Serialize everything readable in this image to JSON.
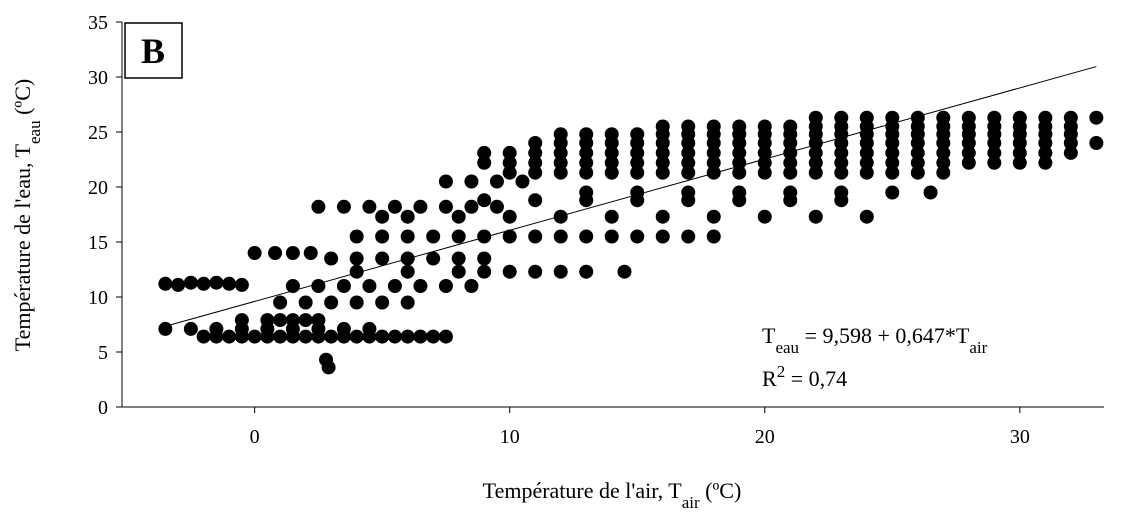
{
  "chart_data": {
    "type": "scatter",
    "title": "B",
    "y_label": {
      "text": "Température de l'eau, T",
      "sub": "eau",
      "unit": " (ºC)"
    },
    "x_label": {
      "text": "Température de l'air, T",
      "sub": "air",
      "unit": " (ºC)"
    },
    "equation": [
      "T",
      "eau",
      " = 9,598 + 0,647*T",
      "air"
    ],
    "r_squared": [
      "R",
      "2",
      " = 0,74"
    ],
    "trendline": {
      "intercept": 9.598,
      "slope": 0.647,
      "x": [
        -3.6,
        33
      ]
    },
    "xlim": [
      -5.2,
      33.3
    ],
    "xticks": [
      0,
      10,
      20,
      30
    ],
    "ylim": [
      0,
      35
    ],
    "yticks": [
      0,
      5,
      10,
      15,
      20,
      25,
      30,
      35
    ],
    "series": [
      {
        "color": "#000000",
        "x": [
          -3.5,
          -3,
          -2.5,
          -2,
          -1.5,
          -1,
          -0.5,
          -2,
          -1.5,
          -1,
          -0.5,
          0,
          0.5,
          1,
          1.5,
          2,
          2.5,
          3,
          3.5,
          4,
          4.5,
          5,
          5.5,
          6,
          6.5,
          7,
          7.5,
          -3.5,
          -2.5,
          -1.5,
          -0.5,
          0.5,
          1.5,
          2.5,
          3.5,
          4.5,
          -0.5,
          0.5,
          1,
          1.5,
          2,
          2.5,
          2.9,
          2.8,
          0,
          0.8,
          1.5,
          2.2,
          1,
          2,
          3,
          4,
          5,
          6,
          1.5,
          2.5,
          3.5,
          4.5,
          5.5,
          6.5,
          7.5,
          8.5,
          4,
          6,
          8,
          9,
          10,
          11,
          12,
          13,
          14.5,
          3,
          4,
          5,
          6,
          7,
          8,
          9,
          2.5,
          3.5,
          4.5,
          5.5,
          6.5,
          7.5,
          8.5,
          9.5,
          4,
          5,
          6,
          7,
          8,
          9,
          10,
          11,
          12,
          13,
          14,
          15,
          16,
          17,
          18,
          5,
          6,
          8,
          10,
          12,
          14,
          16,
          18,
          20,
          22,
          24,
          9,
          11,
          13,
          15,
          17,
          19,
          21,
          23,
          13,
          15,
          17,
          19,
          21,
          23,
          25,
          26.5,
          7.5,
          8.5,
          9.5,
          10.5,
          10,
          11,
          12,
          13,
          14,
          15,
          16,
          17,
          18,
          19,
          20,
          21,
          22,
          23,
          24,
          25,
          26,
          27,
          9,
          10,
          11,
          12,
          13,
          14,
          15,
          16,
          17,
          18,
          19,
          20,
          21,
          22,
          23,
          24,
          25,
          26,
          27,
          28,
          29,
          30,
          31,
          9,
          10,
          11,
          12,
          13,
          14,
          15,
          16,
          17,
          18,
          19,
          20,
          21,
          22,
          23,
          24,
          25,
          26,
          27,
          28,
          29,
          30,
          31,
          32,
          11,
          12,
          13,
          14,
          15,
          16,
          17,
          18,
          19,
          20,
          21,
          22,
          23,
          24,
          25,
          26,
          27,
          28,
          29,
          30,
          31,
          32,
          33,
          12,
          13,
          14,
          15,
          16,
          17,
          18,
          19,
          20,
          21,
          22,
          23,
          24,
          25,
          26,
          27,
          28,
          29,
          30,
          31,
          32,
          16,
          17,
          18,
          19,
          20,
          21,
          22,
          23,
          24,
          25,
          26,
          27,
          28,
          29,
          30,
          31,
          32,
          22,
          23,
          24,
          25,
          26,
          27,
          28,
          29,
          30,
          31,
          32,
          33
        ],
        "values": [
          11.2,
          11.1,
          11.3,
          11.2,
          11.3,
          11.2,
          11.1,
          6.4,
          6.4,
          6.4,
          6.4,
          6.4,
          6.4,
          6.4,
          6.4,
          6.4,
          6.4,
          6.4,
          6.4,
          6.4,
          6.4,
          6.4,
          6.4,
          6.4,
          6.4,
          6.4,
          6.4,
          7.1,
          7.1,
          7.1,
          7.1,
          7.1,
          7.1,
          7.1,
          7.1,
          7.1,
          7.9,
          7.9,
          7.9,
          7.9,
          7.9,
          7.9,
          3.6,
          4.3,
          14,
          14,
          14,
          14,
          9.5,
          9.5,
          9.5,
          9.5,
          9.5,
          9.5,
          11,
          11,
          11,
          11,
          11,
          11,
          11,
          11,
          12.3,
          12.3,
          12.3,
          12.3,
          12.3,
          12.3,
          12.3,
          12.3,
          12.3,
          13.5,
          13.5,
          13.5,
          13.5,
          13.5,
          13.5,
          13.5,
          18.2,
          18.2,
          18.2,
          18.2,
          18.2,
          18.2,
          18.2,
          18.2,
          15.5,
          15.5,
          15.5,
          15.5,
          15.5,
          15.5,
          15.5,
          15.5,
          15.5,
          15.5,
          15.5,
          15.5,
          15.5,
          15.5,
          15.5,
          17.3,
          17.3,
          17.3,
          17.3,
          17.3,
          17.3,
          17.3,
          17.3,
          17.3,
          17.3,
          17.3,
          18.8,
          18.8,
          18.8,
          18.8,
          18.8,
          18.8,
          18.8,
          18.8,
          19.5,
          19.5,
          19.5,
          19.5,
          19.5,
          19.5,
          19.5,
          19.5,
          20.5,
          20.5,
          20.5,
          20.5,
          21.3,
          21.3,
          21.3,
          21.3,
          21.3,
          21.3,
          21.3,
          21.3,
          21.3,
          21.3,
          21.3,
          21.3,
          21.3,
          21.3,
          21.3,
          21.3,
          21.3,
          21.3,
          22.2,
          22.2,
          22.2,
          22.2,
          22.2,
          22.2,
          22.2,
          22.2,
          22.2,
          22.2,
          22.2,
          22.2,
          22.2,
          22.2,
          22.2,
          22.2,
          22.2,
          22.2,
          22.2,
          22.2,
          22.2,
          22.2,
          22.2,
          23.1,
          23.1,
          23.1,
          23.1,
          23.1,
          23.1,
          23.1,
          23.1,
          23.1,
          23.1,
          23.1,
          23.1,
          23.1,
          23.1,
          23.1,
          23.1,
          23.1,
          23.1,
          23.1,
          23.1,
          23.1,
          23.1,
          23.1,
          23.1,
          24,
          24,
          24,
          24,
          24,
          24,
          24,
          24,
          24,
          24,
          24,
          24,
          24,
          24,
          24,
          24,
          24,
          24,
          24,
          24,
          24,
          24,
          24,
          24.8,
          24.8,
          24.8,
          24.8,
          24.8,
          24.8,
          24.8,
          24.8,
          24.8,
          24.8,
          24.8,
          24.8,
          24.8,
          24.8,
          24.8,
          24.8,
          24.8,
          24.8,
          24.8,
          24.8,
          24.8,
          25.5,
          25.5,
          25.5,
          25.5,
          25.5,
          25.5,
          25.5,
          25.5,
          25.5,
          25.5,
          25.5,
          25.5,
          25.5,
          25.5,
          25.5,
          25.5,
          25.5,
          26.3,
          26.3,
          26.3,
          26.3,
          26.3,
          26.3,
          26.3,
          26.3,
          26.3,
          26.3,
          26.3,
          26.3
        ]
      }
    ]
  }
}
